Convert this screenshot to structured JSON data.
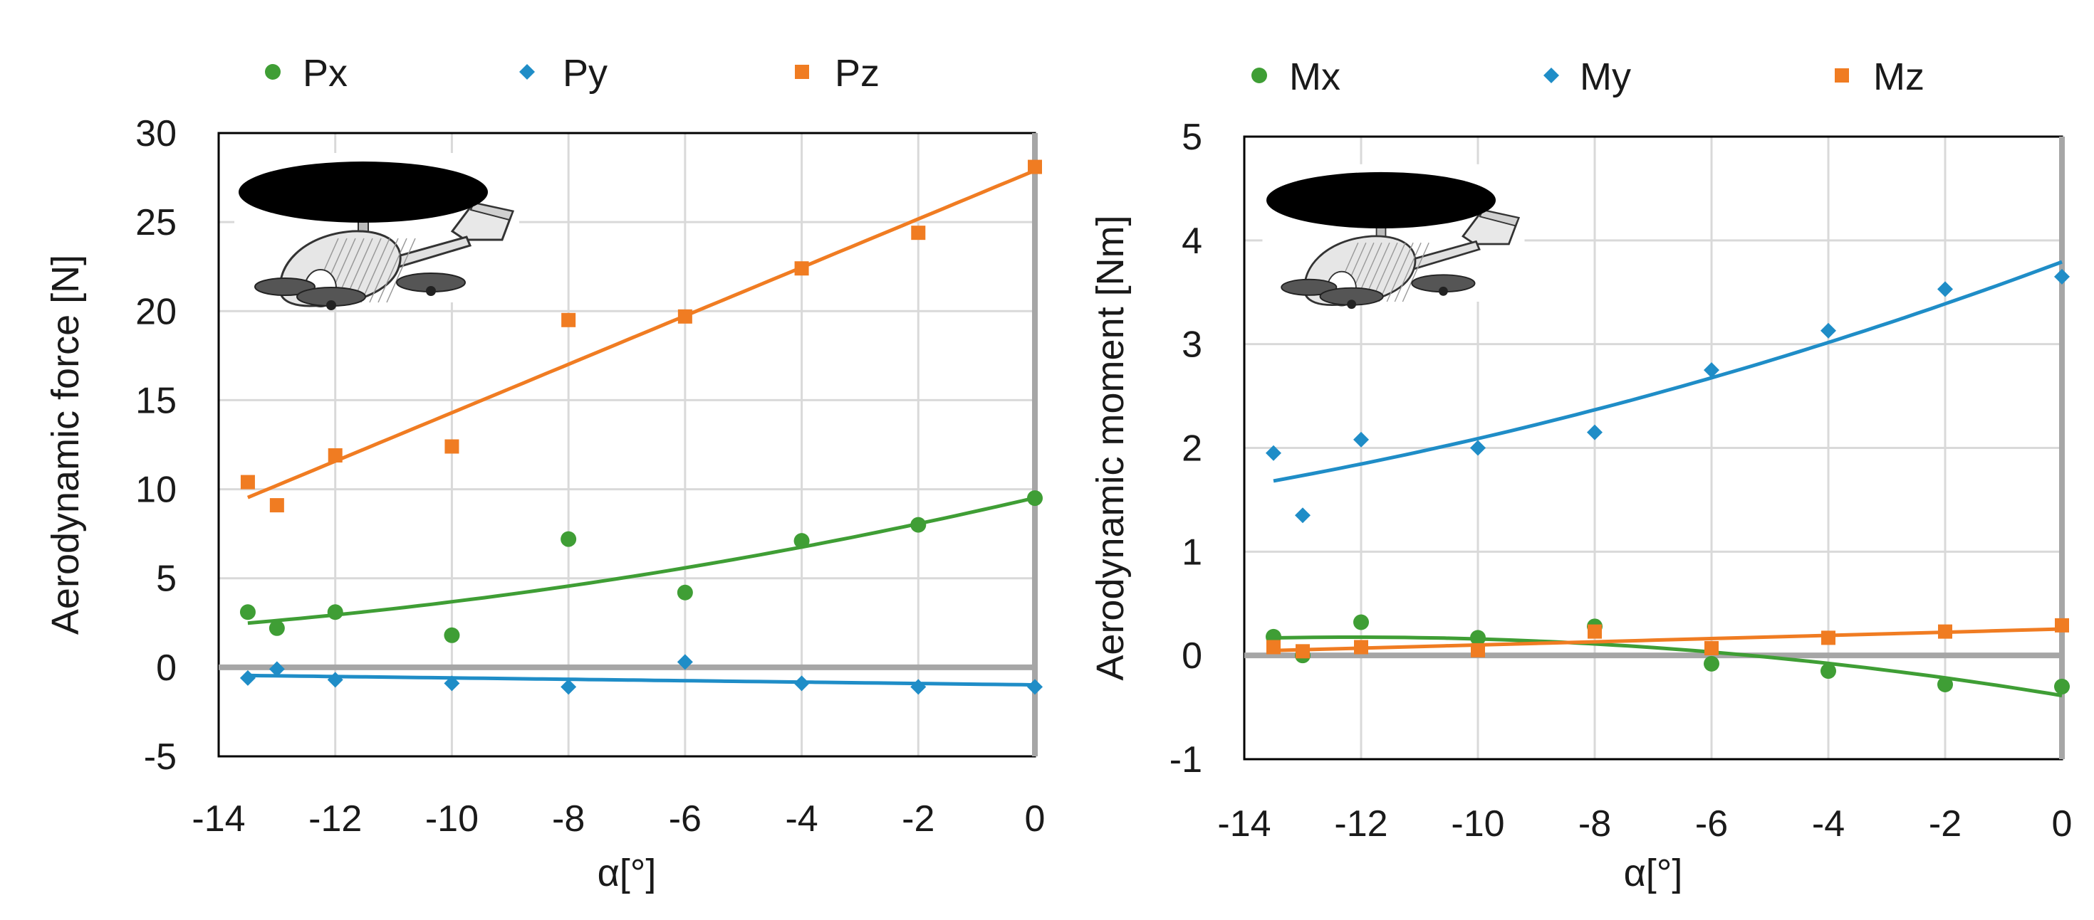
{
  "chart_data": [
    {
      "type": "scatter",
      "xlabel": "α[°]",
      "ylabel": "Aerodynamic force [N]",
      "xlim": [
        -14,
        0
      ],
      "ylim": [
        -5,
        30
      ],
      "x_ticks": [
        -14,
        -12,
        -10,
        -8,
        -6,
        -4,
        -2,
        0
      ],
      "y_ticks": [
        -5,
        0,
        5,
        10,
        15,
        20,
        25,
        30
      ],
      "x": [
        -13.5,
        -13,
        -12,
        -10,
        -8,
        -6,
        -4,
        -2,
        0
      ],
      "series": [
        {
          "name": "Px",
          "marker": "circle",
          "color": "#3f9e35",
          "values": [
            3.1,
            2.2,
            3.1,
            1.8,
            7.2,
            4.2,
            7.1,
            8.0,
            9.5
          ],
          "trend": "quadratic"
        },
        {
          "name": "Py",
          "marker": "diamond",
          "color": "#1f8dc7",
          "values": [
            -0.6,
            -0.1,
            -0.7,
            -0.9,
            -1.1,
            0.3,
            -0.9,
            -1.1,
            -1.1
          ],
          "trend": "linear"
        },
        {
          "name": "Pz",
          "marker": "square",
          "color": "#f07c22",
          "values": [
            10.4,
            9.1,
            11.9,
            12.4,
            19.5,
            19.7,
            22.4,
            24.4,
            28.1
          ],
          "trend": "linear"
        }
      ]
    },
    {
      "type": "scatter",
      "xlabel": "α[°]",
      "ylabel": "Aerodynamic moment [Nm]",
      "xlim": [
        -14,
        0
      ],
      "ylim": [
        -1,
        5
      ],
      "x_ticks": [
        -14,
        -12,
        -10,
        -8,
        -6,
        -4,
        -2,
        0
      ],
      "y_ticks": [
        -1,
        0,
        1,
        2,
        3,
        4,
        5
      ],
      "x": [
        -13.5,
        -13,
        -12,
        -10,
        -8,
        -6,
        -4,
        -2,
        0
      ],
      "series": [
        {
          "name": "Mx",
          "marker": "circle",
          "color": "#3f9e35",
          "values": [
            0.18,
            0.0,
            0.32,
            0.17,
            0.28,
            -0.08,
            -0.15,
            -0.28,
            -0.3
          ],
          "trend": "quadratic"
        },
        {
          "name": "My",
          "marker": "diamond",
          "color": "#1f8dc7",
          "values": [
            1.95,
            1.35,
            2.08,
            2.0,
            2.15,
            2.75,
            3.13,
            3.53,
            3.65
          ],
          "trend": "quadratic"
        },
        {
          "name": "Mz",
          "marker": "square",
          "color": "#f07c22",
          "values": [
            0.08,
            0.04,
            0.08,
            0.05,
            0.23,
            0.07,
            0.17,
            0.23,
            0.29
          ],
          "trend": "linear"
        }
      ]
    }
  ]
}
